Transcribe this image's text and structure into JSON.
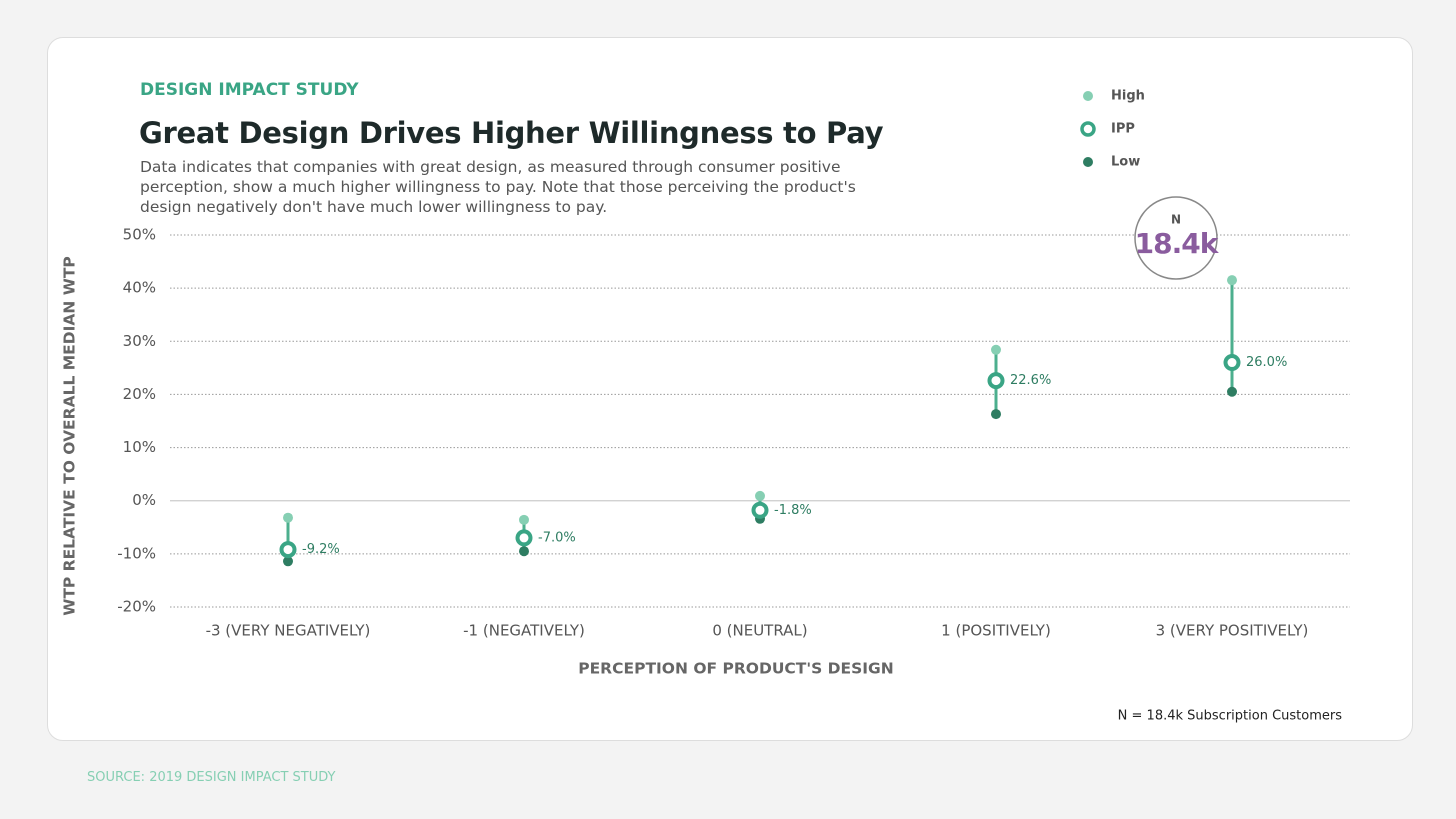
{
  "chart_data": {
    "type": "dot_range",
    "eyebrow": "DESIGN IMPACT STUDY",
    "title": "Great Design Drives Higher Willingness to Pay",
    "subtitle": "Data indicates that companies with great design, as measured through consumer positive perception, show a much higher willingness to pay. Note that those perceiving the product's design negatively don't have much lower willingness to pay.",
    "y_label": "WTP RELATIVE TO OVERALL MEDIAN WTP",
    "x_label": "PERCEPTION OF PRODUCT'S DESIGN",
    "categories": [
      "-3 (VERY NEGATIVELY)",
      "-1 (NEGATIVELY)",
      "0 (NEUTRAL)",
      "1 (POSITIVELY)",
      "3 (VERY POSITIVELY)"
    ],
    "series": [
      {
        "name": "High",
        "color": "#86cfb3",
        "values": [
          -3.2,
          -3.6,
          0.9,
          28.4,
          41.5
        ]
      },
      {
        "name": "IPP",
        "color": "#3aa585",
        "values": [
          -9.2,
          -7.0,
          -1.8,
          22.6,
          26.0
        ],
        "value_labels": [
          "-9.2%",
          "-7.0%",
          "-1.8%",
          "22.6%",
          "26.0%"
        ]
      },
      {
        "name": "Low",
        "color": "#2e7d62",
        "values": [
          -11.4,
          -9.5,
          -3.4,
          16.3,
          20.5
        ]
      }
    ],
    "ylim": [
      -20,
      50
    ],
    "yticks": [
      {
        "value": 50,
        "label": "50%"
      },
      {
        "value": 40,
        "label": "40%"
      },
      {
        "value": 30,
        "label": "30%"
      },
      {
        "value": 20,
        "label": "20%"
      },
      {
        "value": 10,
        "label": "10%"
      },
      {
        "value": 0,
        "label": "0%"
      },
      {
        "value": -10,
        "label": "-10%"
      },
      {
        "value": -20,
        "label": "-20%"
      }
    ],
    "grid": true,
    "legend": "top-right",
    "badge": {
      "label": "N",
      "value": "18.4k"
    },
    "footnote": "N = 18.4k Subscription Customers",
    "source": "SOURCE: 2019 DESIGN IMPACT STUDY"
  }
}
